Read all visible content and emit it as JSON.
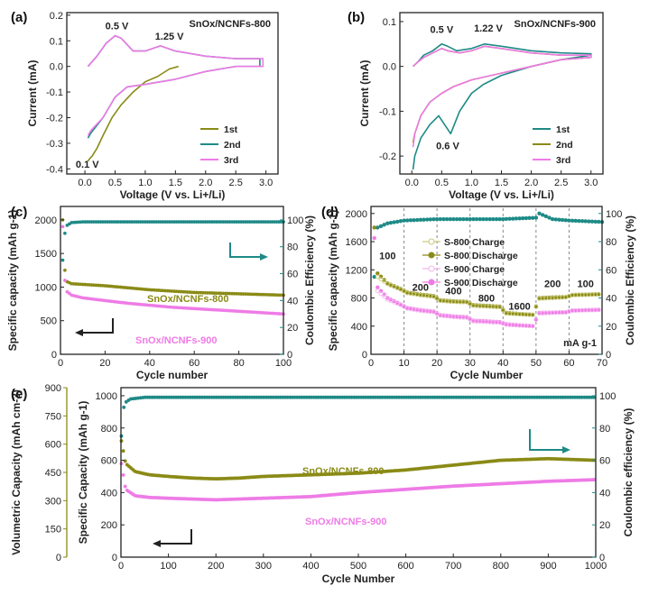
{
  "colors": {
    "olive": "#8a8a16",
    "teal": "#1e8a86",
    "pink": "#ee7be6",
    "pinkLight": "#f5b3ef",
    "oliveLight": "#c9c97a",
    "black": "#222222"
  },
  "chart_data": [
    {
      "id": "a",
      "panel_label": "(a)",
      "type": "line",
      "title": "SnOx/NCNFs-800",
      "xlabel": "Voltage (V vs. Li+/Li)",
      "ylabel": "Current (mA)",
      "xlim": [
        -0.3,
        3.2
      ],
      "ylim": [
        -0.42,
        0.21
      ],
      "xticks": [
        "0.0",
        "0.5",
        "1.0",
        "1.5",
        "2.0",
        "2.5",
        "3.0"
      ],
      "yticks": [
        "-0.4",
        "-0.3",
        "-0.2",
        "-0.1",
        "0.0",
        "0.1",
        "0.2"
      ],
      "annotations": [
        "0.5 V",
        "1.25 V",
        "0.1 V"
      ],
      "legend": [
        "1st",
        "2nd",
        "3rd"
      ],
      "series": [
        {
          "name": "1st",
          "x": [
            1.55,
            1.4,
            1.2,
            1.0,
            0.8,
            0.6,
            0.45,
            0.3,
            0.2,
            0.12,
            0.08,
            0.05
          ],
          "y": [
            0.0,
            -0.01,
            -0.04,
            -0.06,
            -0.1,
            -0.15,
            -0.2,
            -0.27,
            -0.32,
            -0.35,
            -0.36,
            -0.37
          ]
        },
        {
          "name": "2nd",
          "x": [
            0.05,
            0.2,
            0.35,
            0.5,
            0.6,
            0.8,
            1.0,
            1.25,
            1.5,
            2.0,
            2.5,
            2.9,
            2.9,
            2.5,
            2.0,
            1.5,
            1.0,
            0.7,
            0.5,
            0.3,
            0.1,
            0.05
          ],
          "y": [
            0.0,
            0.04,
            0.09,
            0.12,
            0.11,
            0.06,
            0.06,
            0.08,
            0.06,
            0.04,
            0.03,
            0.03,
            0.0,
            0.0,
            -0.02,
            -0.05,
            -0.07,
            -0.08,
            -0.12,
            -0.2,
            -0.26,
            -0.28
          ]
        },
        {
          "name": "3rd",
          "x": [
            0.05,
            0.2,
            0.35,
            0.5,
            0.6,
            0.8,
            1.0,
            1.25,
            1.5,
            2.0,
            2.5,
            2.95,
            2.95,
            2.5,
            2.0,
            1.5,
            1.0,
            0.7,
            0.5,
            0.3,
            0.1,
            0.05
          ],
          "y": [
            0.0,
            0.04,
            0.09,
            0.12,
            0.11,
            0.06,
            0.06,
            0.08,
            0.06,
            0.04,
            0.03,
            0.03,
            0.0,
            0.0,
            -0.02,
            -0.05,
            -0.07,
            -0.08,
            -0.12,
            -0.2,
            -0.25,
            -0.27
          ]
        }
      ]
    },
    {
      "id": "b",
      "panel_label": "(b)",
      "type": "line",
      "title": "SnOx/NCNFs-900",
      "xlabel": "Voltage (V vs. Li+/Li)",
      "ylabel": "Current (mA)",
      "xlim": [
        -0.2,
        3.2
      ],
      "ylim": [
        -0.24,
        0.12
      ],
      "xticks": [
        "0.0",
        "0.5",
        "1.0",
        "1.5",
        "2.0",
        "2.5",
        "3.0"
      ],
      "yticks": [
        "-0.2",
        "-0.1",
        "0.0",
        "0.1"
      ],
      "annotations": [
        "0.5 V",
        "1.22 V",
        "0.6 V"
      ],
      "legend": [
        "1st",
        "2nd",
        "3rd"
      ],
      "series": [
        {
          "name": "1st",
          "x": [
            0.02,
            0.1,
            0.2,
            0.35,
            0.5,
            0.6,
            0.75,
            1.0,
            1.22,
            1.5,
            2.0,
            2.5,
            3.0,
            3.0,
            2.5,
            2.0,
            1.5,
            1.2,
            1.0,
            0.8,
            0.65,
            0.55,
            0.45,
            0.3,
            0.15,
            0.05,
            0.02
          ],
          "y": [
            0.0,
            0.01,
            0.025,
            0.035,
            0.05,
            0.045,
            0.035,
            0.04,
            0.05,
            0.045,
            0.035,
            0.03,
            0.028,
            0.025,
            0.015,
            0.0,
            -0.02,
            -0.04,
            -0.06,
            -0.1,
            -0.15,
            -0.13,
            -0.11,
            -0.13,
            -0.16,
            -0.2,
            -0.23
          ]
        },
        {
          "name": "2nd",
          "x": [
            0.02,
            0.1,
            0.2,
            0.35,
            0.5,
            0.6,
            0.8,
            1.0,
            1.22,
            1.5,
            2.0,
            2.5,
            3.0,
            3.0,
            2.5,
            2.0,
            1.5,
            1.0,
            0.7,
            0.5,
            0.3,
            0.15,
            0.05,
            0.02
          ],
          "y": [
            0.0,
            0.01,
            0.02,
            0.03,
            0.04,
            0.035,
            0.03,
            0.035,
            0.045,
            0.04,
            0.03,
            0.025,
            0.025,
            0.02,
            0.015,
            0.0,
            -0.015,
            -0.03,
            -0.045,
            -0.06,
            -0.08,
            -0.11,
            -0.15,
            -0.17
          ]
        },
        {
          "name": "3rd",
          "x": [
            0.02,
            0.1,
            0.2,
            0.35,
            0.5,
            0.6,
            0.8,
            1.0,
            1.22,
            1.5,
            2.0,
            2.5,
            3.0,
            3.0,
            2.5,
            2.0,
            1.5,
            1.0,
            0.7,
            0.5,
            0.3,
            0.15,
            0.05,
            0.02
          ],
          "y": [
            0.0,
            0.01,
            0.02,
            0.03,
            0.04,
            0.035,
            0.03,
            0.035,
            0.045,
            0.04,
            0.03,
            0.025,
            0.025,
            0.02,
            0.015,
            0.0,
            -0.015,
            -0.03,
            -0.045,
            -0.06,
            -0.08,
            -0.11,
            -0.15,
            -0.18
          ]
        }
      ]
    },
    {
      "id": "c",
      "panel_label": "(c)",
      "type": "scatter",
      "xlabel": "Cycle number",
      "ylabel": "Specific capacity (mAh g-1)",
      "y2label": "Coulombic Efficiency (%)",
      "xlim": [
        0,
        100
      ],
      "ylim": [
        0,
        2200
      ],
      "y2lim": [
        0,
        110
      ],
      "xticks": [
        "0",
        "20",
        "40",
        "60",
        "80",
        "100"
      ],
      "yticks": [
        "0",
        "500",
        "1000",
        "1500",
        "2000"
      ],
      "y2ticks": [
        "0",
        "20",
        "40",
        "60",
        "80",
        "100"
      ],
      "series_labels": [
        "SnOx/NCNFs-800",
        "SnOx/NCNFs-900"
      ],
      "series": [
        {
          "name": "SnOx/NCNFs-800 capacity",
          "axis": "left",
          "x": [
            1,
            2,
            3,
            5,
            10,
            20,
            30,
            40,
            50,
            60,
            70,
            80,
            90,
            100
          ],
          "y": [
            2000,
            1250,
            1080,
            1050,
            1040,
            1020,
            990,
            960,
            940,
            920,
            910,
            900,
            890,
            880
          ]
        },
        {
          "name": "SnOx/NCNFs-900 capacity",
          "axis": "left",
          "x": [
            1,
            2,
            3,
            5,
            10,
            20,
            30,
            40,
            50,
            60,
            70,
            80,
            90,
            100
          ],
          "y": [
            1900,
            1100,
            930,
            880,
            840,
            800,
            760,
            730,
            700,
            680,
            660,
            640,
            620,
            600
          ]
        },
        {
          "name": "Coulombic efficiency",
          "axis": "right",
          "x": [
            1,
            2,
            3,
            5,
            10,
            20,
            40,
            60,
            80,
            100
          ],
          "y": [
            70,
            90,
            96,
            98,
            98.5,
            98.5,
            98.5,
            98.5,
            98.5,
            98.5
          ]
        }
      ]
    },
    {
      "id": "d",
      "panel_label": "(d)",
      "type": "scatter",
      "xlabel": "Cycle Number",
      "ylabel": "Specific capacity (mAh g-1)",
      "y2label": "Coulombic Efficiency (%)",
      "xlim": [
        0,
        70
      ],
      "ylim": [
        0,
        2100
      ],
      "y2lim": [
        0,
        105
      ],
      "xticks": [
        "0",
        "10",
        "20",
        "30",
        "40",
        "50",
        "60",
        "70"
      ],
      "yticks": [
        "0",
        "400",
        "800",
        "1200",
        "1600",
        "2000"
      ],
      "y2ticks": [
        "0",
        "20",
        "40",
        "60",
        "80",
        "100"
      ],
      "rate_labels": [
        "100",
        "200",
        "400",
        "800",
        "1600",
        "200",
        "100"
      ],
      "rate_unit": "mA g-1",
      "legend": [
        "S-800 Charge",
        "S-800 Discharge",
        "S-900 Charge",
        "S-900 Discharge"
      ],
      "series": [
        {
          "name": "S-800 Charge",
          "axis": "left",
          "x": [
            2,
            5,
            9,
            11,
            15,
            19,
            21,
            25,
            29,
            31,
            35,
            39,
            41,
            45,
            49,
            51,
            55,
            59,
            61,
            65,
            69
          ],
          "y": [
            1100,
            1000,
            920,
            870,
            840,
            820,
            760,
            745,
            740,
            690,
            680,
            670,
            580,
            570,
            560,
            790,
            800,
            810,
            840,
            845,
            850
          ]
        },
        {
          "name": "S-800 Discharge",
          "axis": "left",
          "x": [
            1,
            2,
            5,
            9,
            11,
            15,
            19,
            21,
            25,
            29,
            31,
            35,
            39,
            41,
            45,
            49,
            51,
            55,
            59,
            61,
            65,
            69
          ],
          "y": [
            1800,
            1150,
            1010,
            930,
            880,
            850,
            830,
            770,
            755,
            748,
            700,
            690,
            680,
            590,
            575,
            565,
            800,
            810,
            815,
            845,
            850,
            855
          ]
        },
        {
          "name": "S-900 Charge",
          "axis": "left",
          "x": [
            2,
            5,
            9,
            11,
            15,
            19,
            21,
            25,
            29,
            31,
            35,
            39,
            41,
            45,
            49,
            51,
            55,
            59,
            61,
            65,
            69
          ],
          "y": [
            900,
            780,
            700,
            650,
            620,
            600,
            550,
            530,
            520,
            470,
            460,
            450,
            420,
            410,
            400,
            580,
            590,
            595,
            620,
            625,
            630
          ]
        },
        {
          "name": "S-900 Discharge",
          "axis": "left",
          "x": [
            1,
            2,
            5,
            9,
            11,
            15,
            19,
            21,
            25,
            29,
            31,
            35,
            39,
            41,
            45,
            49,
            51,
            55,
            59,
            61,
            65,
            69
          ],
          "y": [
            1650,
            950,
            800,
            710,
            660,
            630,
            610,
            560,
            540,
            530,
            480,
            470,
            460,
            430,
            415,
            405,
            590,
            595,
            600,
            625,
            630,
            635
          ]
        },
        {
          "name": "Coulombic Efficiency",
          "axis": "right",
          "x": [
            1,
            2,
            5,
            10,
            20,
            30,
            40,
            50,
            51,
            55,
            60,
            70
          ],
          "y": [
            55,
            90,
            93,
            95,
            96,
            96,
            96,
            97,
            100,
            96,
            95,
            94
          ]
        }
      ]
    },
    {
      "id": "e",
      "panel_label": "(e)",
      "type": "scatter",
      "xlabel": "Cycle Number",
      "ylabel": "Specific Capacity (mAh g-1)",
      "y2label": "Coulombic efficiency (%)",
      "y3label": "Volumetric Capacity (mAh cm-3)",
      "xlim": [
        0,
        1000
      ],
      "ylim": [
        0,
        1050
      ],
      "y2lim": [
        0,
        105
      ],
      "y3lim": [
        0,
        900
      ],
      "xticks": [
        "0",
        "100",
        "200",
        "300",
        "400",
        "500",
        "600",
        "700",
        "800",
        "900",
        "1000"
      ],
      "yticks": [
        "0",
        "200",
        "400",
        "600",
        "800",
        "1000"
      ],
      "y2ticks": [
        "0",
        "20",
        "40",
        "60",
        "80",
        "100"
      ],
      "y3ticks": [
        "0",
        "150",
        "300",
        "450",
        "600",
        "750",
        "900"
      ],
      "series_labels": [
        "SnOx/NCNFs-800",
        "SnOx/NCNFs-900"
      ],
      "series": [
        {
          "name": "SnOx/NCNFs-800",
          "axis": "left",
          "x": [
            1,
            10,
            30,
            60,
            100,
            150,
            200,
            250,
            300,
            400,
            500,
            600,
            700,
            800,
            900,
            1000
          ],
          "y": [
            720,
            580,
            530,
            510,
            500,
            490,
            485,
            490,
            500,
            510,
            520,
            540,
            570,
            600,
            610,
            600
          ]
        },
        {
          "name": "SnOx/NCNFs-900",
          "axis": "left",
          "x": [
            1,
            10,
            30,
            60,
            100,
            150,
            200,
            250,
            300,
            400,
            500,
            600,
            700,
            800,
            900,
            1000
          ],
          "y": [
            580,
            420,
            380,
            370,
            365,
            360,
            355,
            360,
            365,
            375,
            400,
            420,
            440,
            455,
            470,
            480
          ]
        },
        {
          "name": "Coulombic efficiency",
          "axis": "right",
          "x": [
            1,
            5,
            10,
            20,
            50,
            100,
            200,
            400,
            600,
            800,
            1000
          ],
          "y": [
            75,
            92,
            96,
            98,
            99,
            99,
            99,
            99,
            99,
            99,
            99
          ]
        }
      ]
    }
  ]
}
